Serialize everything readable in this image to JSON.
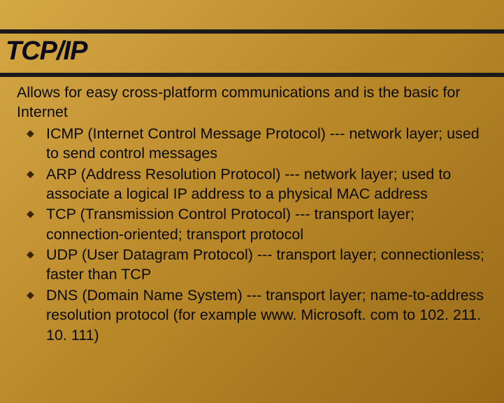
{
  "slide": {
    "title": "TCP/IP",
    "intro": "Allows for easy cross-platform communications and is the basic for Internet",
    "bullets": [
      "ICMP (Internet Control Message Protocol) --- network layer; used to send control messages",
      "ARP (Address Resolution Protocol) --- network layer; used to associate a logical IP address to a physical MAC address",
      "TCP (Transmission Control Protocol) --- transport layer; connection-oriented; transport protocol",
      "UDP (User Datagram Protocol) --- transport layer; connectionless; faster than TCP",
      "DNS (Domain Name System) --- transport layer; name-to-address resolution protocol (for example www. Microsoft. com to 102. 211. 10. 111)"
    ],
    "colors": {
      "background_gradient_start": "#d4a843",
      "background_gradient_end": "#9a6a18",
      "stripe_color": "#1a1a1a",
      "title_color": "#0a0a1a",
      "text_color": "#0a0a0a",
      "bullet_color": "#3a2408"
    },
    "typography": {
      "title_fontsize": 38,
      "title_weight": "bold",
      "title_style": "italic",
      "body_fontsize": 21.5,
      "font_family": "Arial"
    },
    "bullet_glyph": "◆"
  }
}
